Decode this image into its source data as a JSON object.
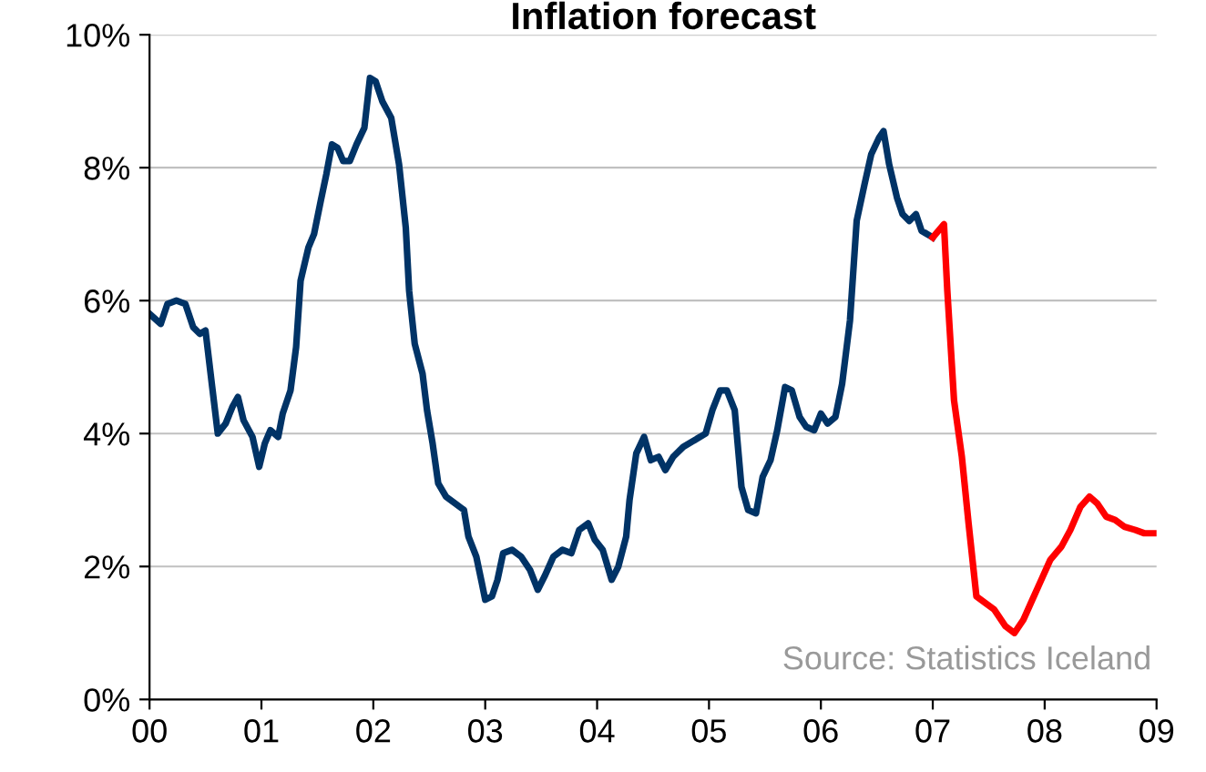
{
  "chart_data": {
    "type": "line",
    "title": "Inflation forecast",
    "xlim": [
      0,
      9
    ],
    "xticks": [
      {
        "value": 0,
        "label": "00"
      },
      {
        "value": 1,
        "label": "01"
      },
      {
        "value": 2,
        "label": "02"
      },
      {
        "value": 3,
        "label": "03"
      },
      {
        "value": 4,
        "label": "04"
      },
      {
        "value": 5,
        "label": "05"
      },
      {
        "value": 6,
        "label": "06"
      },
      {
        "value": 7,
        "label": "07"
      },
      {
        "value": 8,
        "label": "08"
      },
      {
        "value": 9,
        "label": "09"
      }
    ],
    "ylim": [
      0,
      10
    ],
    "yticks": [
      {
        "value": 0,
        "label": "0%"
      },
      {
        "value": 2,
        "label": "2%"
      },
      {
        "value": 4,
        "label": "4%"
      },
      {
        "value": 6,
        "label": "6%"
      },
      {
        "value": 8,
        "label": "8%"
      },
      {
        "value": 10,
        "label": "10%"
      }
    ],
    "grid": "y",
    "marker": "none",
    "line_style": "solid",
    "annotations": [
      "Source: Statistics Iceland"
    ],
    "series": [
      {
        "color": "#003366",
        "x": [
          0,
          0.1,
          0.16,
          0.24,
          0.32,
          0.39,
          0.45,
          0.5,
          0.56,
          0.61,
          0.68,
          0.74,
          0.79,
          0.84,
          0.92,
          0.98,
          1.03,
          1.08,
          1.15,
          1.19,
          1.26,
          1.31,
          1.35,
          1.42,
          1.47,
          1.53,
          1.58,
          1.63,
          1.68,
          1.73,
          1.79,
          1.85,
          1.92,
          1.97,
          2.02,
          2.08,
          2.16,
          2.23,
          2.29,
          2.32,
          2.37,
          2.44,
          2.48,
          2.53,
          2.58,
          2.65,
          2.73,
          2.81,
          2.85,
          2.92,
          2.97,
          3.0,
          3.06,
          3.11,
          3.16,
          3.24,
          3.32,
          3.4,
          3.47,
          3.53,
          3.61,
          3.69,
          3.77,
          3.84,
          3.92,
          3.98,
          4.05,
          4.13,
          4.19,
          4.26,
          4.29,
          4.35,
          4.42,
          4.48,
          4.55,
          4.61,
          4.68,
          4.77,
          4.87,
          4.97,
          5.03,
          5.1,
          5.16,
          5.23,
          5.29,
          5.35,
          5.42,
          5.48,
          5.55,
          5.61,
          5.68,
          5.74,
          5.81,
          5.87,
          5.94,
          6.0,
          6.06,
          6.13,
          6.19,
          6.26,
          6.32,
          6.39,
          6.45,
          6.52,
          6.56,
          6.61,
          6.68,
          6.73,
          6.79,
          6.85,
          6.9,
          7.0
        ],
        "values": [
          5.8,
          5.65,
          5.95,
          6.0,
          5.95,
          5.6,
          5.5,
          5.55,
          4.7,
          4.0,
          4.15,
          4.4,
          4.55,
          4.2,
          3.95,
          3.5,
          3.85,
          4.05,
          3.95,
          4.3,
          4.65,
          5.3,
          6.3,
          6.8,
          7.0,
          7.5,
          7.9,
          8.35,
          8.3,
          8.1,
          8.1,
          8.35,
          8.6,
          9.35,
          9.3,
          9.0,
          8.75,
          8.05,
          7.1,
          6.15,
          5.35,
          4.9,
          4.35,
          3.85,
          3.25,
          3.05,
          2.95,
          2.85,
          2.45,
          2.15,
          1.75,
          1.5,
          1.55,
          1.8,
          2.2,
          2.25,
          2.15,
          1.95,
          1.65,
          1.85,
          2.15,
          2.25,
          2.2,
          2.55,
          2.65,
          2.4,
          2.25,
          1.8,
          2.0,
          2.45,
          3.0,
          3.7,
          3.95,
          3.6,
          3.65,
          3.45,
          3.65,
          3.8,
          3.9,
          4.0,
          4.35,
          4.65,
          4.65,
          4.35,
          3.2,
          2.85,
          2.8,
          3.35,
          3.6,
          4.05,
          4.7,
          4.65,
          4.25,
          4.1,
          4.05,
          4.3,
          4.15,
          4.25,
          4.75,
          5.7,
          7.2,
          7.75,
          8.2,
          8.45,
          8.55,
          8.05,
          7.55,
          7.3,
          7.2,
          7.3,
          7.05,
          6.95
        ]
      },
      {
        "color": "#ff0000",
        "x": [
          7.0,
          7.1,
          7.13,
          7.19,
          7.26,
          7.32,
          7.39,
          7.47,
          7.55,
          7.65,
          7.73,
          7.81,
          7.89,
          7.97,
          8.05,
          8.15,
          8.23,
          8.32,
          8.4,
          8.47,
          8.55,
          8.63,
          8.71,
          8.81,
          8.89,
          9.0
        ],
        "values": [
          6.95,
          7.15,
          6.15,
          4.5,
          3.65,
          2.65,
          1.55,
          1.45,
          1.35,
          1.1,
          1.0,
          1.2,
          1.5,
          1.8,
          2.1,
          2.3,
          2.55,
          2.9,
          3.05,
          2.95,
          2.75,
          2.7,
          2.6,
          2.55,
          2.5,
          2.5
        ]
      }
    ]
  }
}
